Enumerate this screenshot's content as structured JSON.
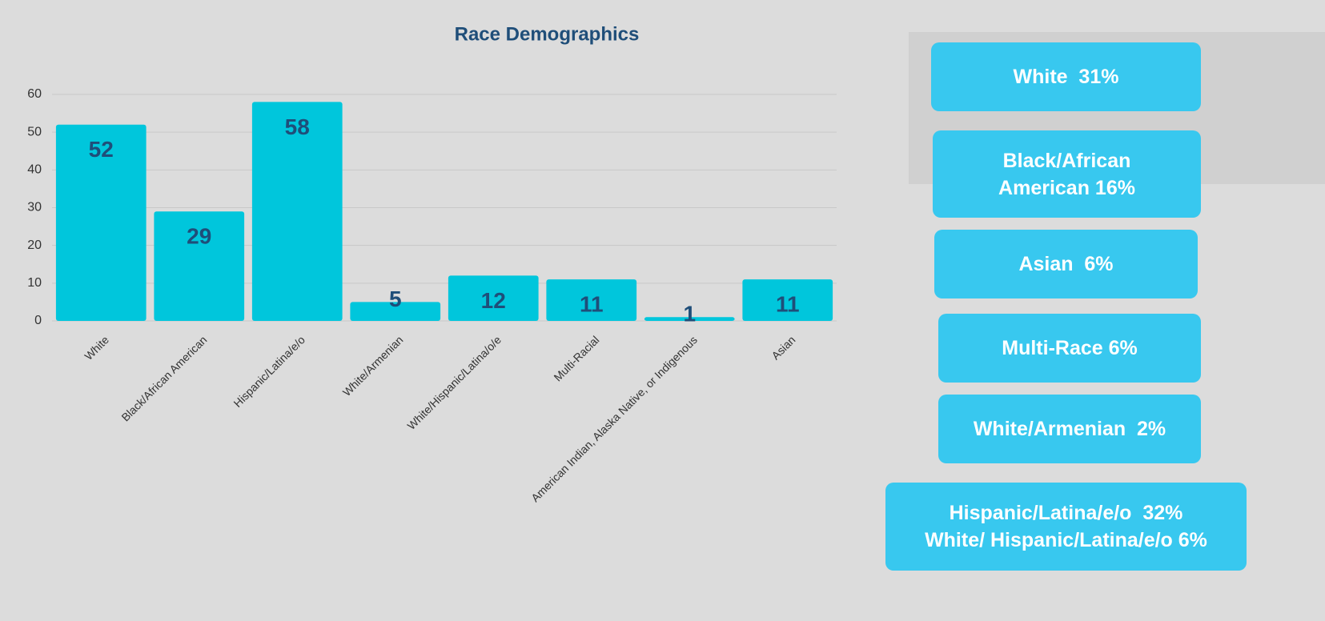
{
  "chart_data": {
    "type": "bar",
    "title": "Race Demographics",
    "categories": [
      "White",
      "Black/African American",
      "Hispanic/Latina/e/o",
      "White/Armenian",
      "White/Hispanic/Latina/o/e",
      "Multi-Racial",
      "American Indian, Alaska Native, or Indigenous",
      "Asian"
    ],
    "values": [
      52,
      29,
      58,
      5,
      12,
      11,
      1,
      11
    ],
    "color": "#00c6dc",
    "ylim": [
      0,
      60
    ],
    "yticks": [
      0,
      10,
      20,
      30,
      40,
      50,
      60
    ],
    "grid": true
  },
  "boxes": [
    {
      "lines": [
        "White  31%"
      ]
    },
    {
      "lines": [
        "Black/African",
        "American 16%"
      ]
    },
    {
      "lines": [
        "Asian  6%"
      ]
    },
    {
      "lines": [
        "Multi-Race 6%"
      ]
    },
    {
      "lines": [
        "White/Armenian  2%"
      ]
    },
    {
      "lines": [
        "Hispanic/Latina/e/o  32%",
        "White/ Hispanic/Latina/e/o 6%"
      ]
    }
  ]
}
